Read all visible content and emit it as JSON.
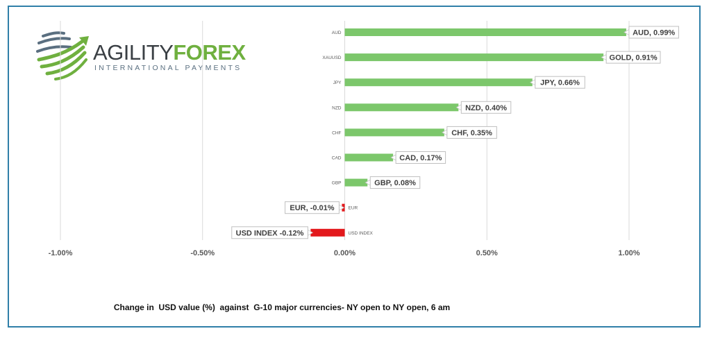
{
  "logo": {
    "word_a": "AGILITY",
    "word_b": "FOREX",
    "tagline": "INTERNATIONAL PAYMENTS",
    "icon": "globe-swoosh-icon"
  },
  "colors": {
    "positive": "#7cc76b",
    "negative": "#e3191c",
    "frame": "#2f7fa8",
    "grid": "#d9d9d9",
    "logo_green": "#6fb03f"
  },
  "chart_data": {
    "type": "bar",
    "orientation": "horizontal",
    "categories": [
      "AUD",
      "XAUUSD",
      "JPY",
      "NZD",
      "CHF",
      "CAD",
      "GBP",
      "EUR",
      "USD INDEX"
    ],
    "values": [
      0.99,
      0.91,
      0.66,
      0.4,
      0.35,
      0.17,
      0.08,
      -0.01,
      -0.12
    ],
    "data_labels": [
      "AUD, 0.99%",
      "GOLD, 0.91%",
      "JPY, 0.66%",
      "NZD, 0.40%",
      "CHF, 0.35%",
      "CAD, 0.17%",
      "GBP, 0.08%",
      "EUR, -0.01%",
      "USD INDEX -0.12%"
    ],
    "tick_values": [
      -1.0,
      -0.5,
      0.0,
      0.5,
      1.0
    ],
    "tick_labels": [
      "-1.00%",
      "-0.50%",
      "0.00%",
      "0.50%",
      "1.00%"
    ],
    "xlim": [
      -1.0,
      1.0
    ],
    "grid": true,
    "legend": "none",
    "caption": "Change in  USD value (%)  against  G-10 major currencies- NY open to NY open, 6 am"
  }
}
